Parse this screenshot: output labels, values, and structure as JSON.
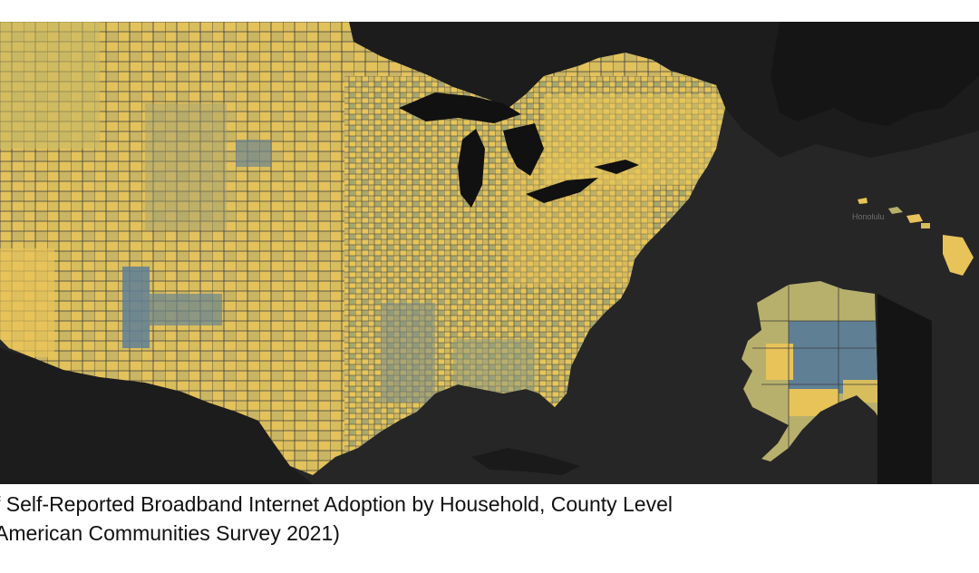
{
  "caption": {
    "line1": "f Self-Reported Broadband Internet Adoption by Household, County Level",
    "line2": "American Communities Survey 2021)"
  },
  "map": {
    "city_label": "Honolulu",
    "colors": {
      "background": "#222222",
      "ocean": "#262626",
      "land_dark": "#1a1a1a",
      "water_lakes": "#111111",
      "high_adoption": "#e8c35a",
      "mid_adoption": "#b7b06c",
      "low_adoption": "#5f7f95",
      "county_border": "#3b3b3b"
    },
    "icons": {
      "map": "choropleth-map"
    }
  }
}
